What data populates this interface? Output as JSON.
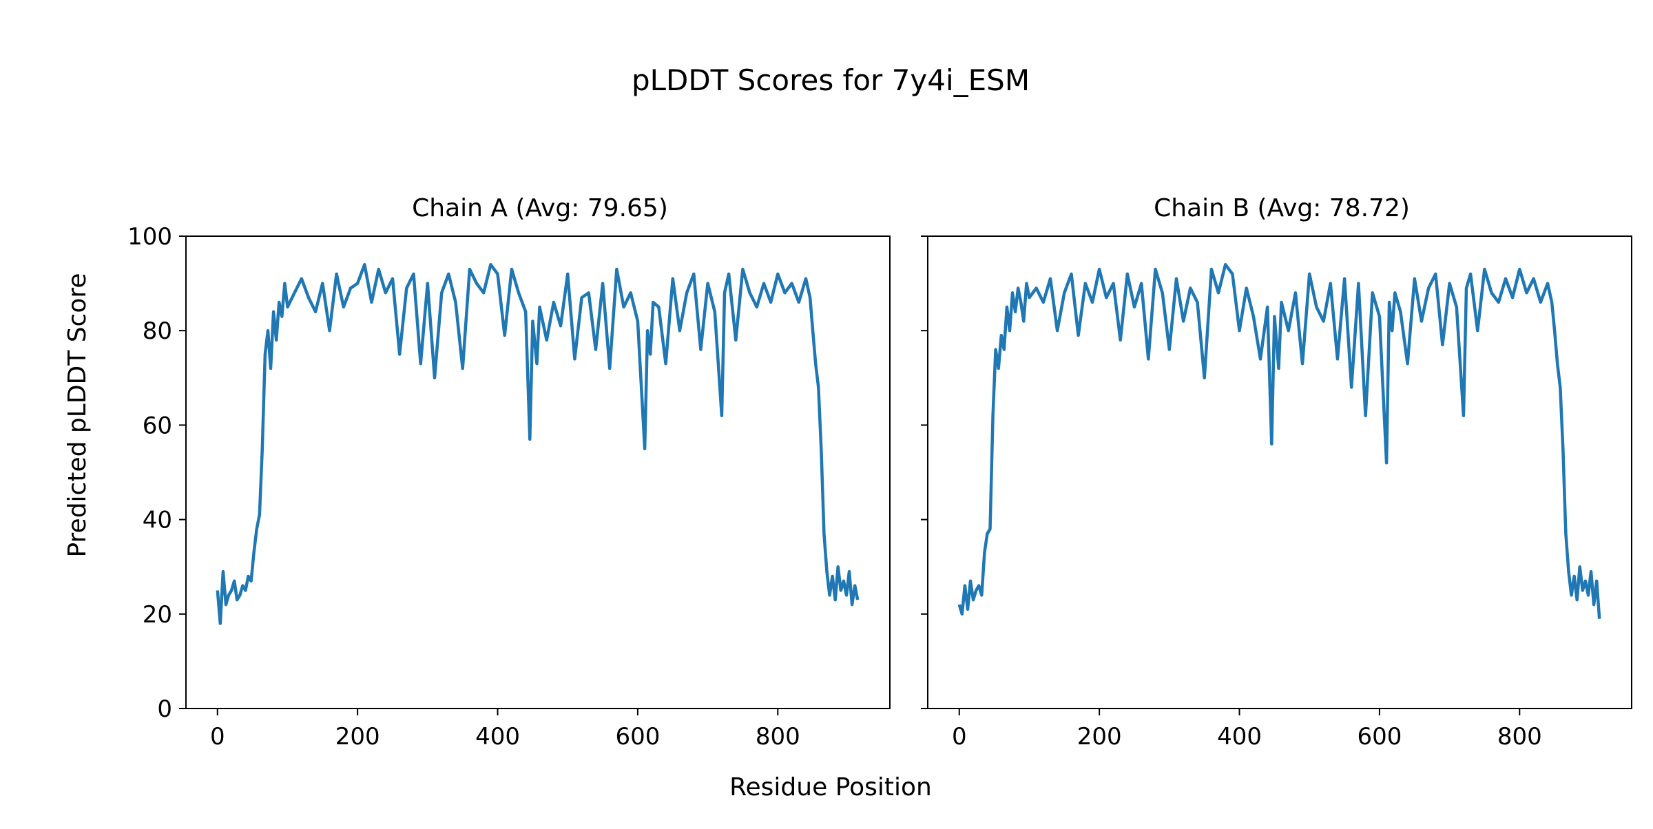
{
  "figure": {
    "title": "pLDDT Scores for 7y4i_ESM",
    "xlabel": "Residue Position",
    "ylabel": "Predicted pLDDT Score",
    "line_color": "#1f77b4"
  },
  "chart_data": [
    {
      "type": "line",
      "title": "Chain A (Avg: 79.65)",
      "xlabel": "Residue Position",
      "ylabel": "Predicted pLDDT Score",
      "xlim": [
        -45,
        960
      ],
      "ylim": [
        0,
        100
      ],
      "xticks": [
        0,
        200,
        400,
        600,
        800
      ],
      "yticks": [
        0,
        20,
        40,
        60,
        80,
        100
      ],
      "grid": false,
      "series": [
        {
          "x": [
            0,
            4,
            8,
            12,
            16,
            20,
            24,
            28,
            32,
            36,
            40,
            44,
            48,
            52,
            56,
            60,
            64,
            68,
            72,
            76,
            80,
            84,
            88,
            92,
            96,
            100,
            110,
            120,
            130,
            140,
            150,
            160,
            170,
            180,
            190,
            200,
            210,
            220,
            230,
            240,
            250,
            260,
            270,
            280,
            290,
            300,
            310,
            320,
            330,
            340,
            350,
            360,
            370,
            380,
            390,
            400,
            410,
            420,
            430,
            440,
            446,
            450,
            456,
            460,
            470,
            480,
            490,
            500,
            510,
            520,
            530,
            540,
            550,
            560,
            570,
            580,
            590,
            600,
            610,
            614,
            618,
            622,
            630,
            640,
            650,
            660,
            670,
            680,
            690,
            700,
            710,
            720,
            724,
            730,
            740,
            750,
            760,
            770,
            780,
            790,
            800,
            810,
            820,
            830,
            840,
            846,
            850,
            854,
            858,
            862,
            866,
            870,
            874,
            878,
            882,
            886,
            890,
            894,
            898,
            902,
            906,
            910,
            914
          ],
          "y": [
            25,
            18,
            29,
            22,
            24,
            25,
            27,
            23,
            24,
            26,
            25,
            28,
            27,
            33,
            38,
            41,
            55,
            75,
            80,
            72,
            84,
            78,
            86,
            83,
            90,
            85,
            88,
            91,
            87,
            84,
            90,
            80,
            92,
            85,
            89,
            90,
            94,
            86,
            93,
            88,
            91,
            75,
            89,
            92,
            73,
            90,
            70,
            88,
            92,
            86,
            72,
            93,
            90,
            88,
            94,
            92,
            79,
            93,
            88,
            84,
            57,
            82,
            73,
            85,
            78,
            86,
            81,
            92,
            74,
            87,
            88,
            76,
            90,
            72,
            93,
            85,
            88,
            82,
            55,
            80,
            75,
            86,
            85,
            73,
            91,
            80,
            88,
            92,
            76,
            90,
            84,
            62,
            88,
            92,
            78,
            93,
            88,
            85,
            90,
            86,
            92,
            88,
            90,
            86,
            91,
            87,
            80,
            73,
            68,
            55,
            37,
            29,
            24,
            28,
            23,
            30,
            25,
            27,
            24,
            29,
            22,
            26,
            23
          ]
        }
      ]
    },
    {
      "type": "line",
      "title": "Chain B (Avg: 78.72)",
      "xlabel": "Residue Position",
      "ylabel": "Predicted pLDDT Score",
      "xlim": [
        -45,
        960
      ],
      "ylim": [
        0,
        100
      ],
      "xticks": [
        0,
        200,
        400,
        600,
        800
      ],
      "yticks": [
        0,
        20,
        40,
        60,
        80,
        100
      ],
      "grid": false,
      "series": [
        {
          "x": [
            0,
            4,
            8,
            12,
            16,
            20,
            24,
            28,
            32,
            36,
            40,
            44,
            48,
            52,
            56,
            60,
            64,
            68,
            72,
            76,
            80,
            84,
            88,
            92,
            96,
            100,
            110,
            120,
            130,
            140,
            150,
            160,
            170,
            180,
            190,
            200,
            210,
            220,
            230,
            240,
            250,
            260,
            270,
            280,
            290,
            300,
            310,
            320,
            330,
            340,
            350,
            360,
            370,
            380,
            390,
            400,
            410,
            420,
            430,
            440,
            446,
            450,
            456,
            460,
            470,
            480,
            490,
            500,
            510,
            520,
            530,
            540,
            550,
            560,
            570,
            580,
            590,
            600,
            610,
            614,
            618,
            622,
            630,
            640,
            650,
            660,
            670,
            680,
            690,
            700,
            710,
            720,
            724,
            730,
            740,
            750,
            760,
            770,
            780,
            790,
            800,
            810,
            820,
            830,
            840,
            846,
            850,
            854,
            858,
            862,
            866,
            870,
            874,
            878,
            882,
            886,
            890,
            894,
            898,
            902,
            906,
            910,
            914
          ],
          "y": [
            22,
            20,
            26,
            21,
            27,
            23,
            25,
            26,
            24,
            33,
            37,
            38,
            62,
            76,
            72,
            79,
            76,
            85,
            80,
            88,
            84,
            89,
            86,
            82,
            90,
            87,
            89,
            86,
            91,
            80,
            88,
            92,
            79,
            90,
            86,
            93,
            87,
            90,
            78,
            92,
            85,
            90,
            74,
            93,
            88,
            76,
            91,
            82,
            89,
            86,
            70,
            93,
            88,
            94,
            92,
            80,
            89,
            83,
            74,
            85,
            56,
            83,
            72,
            86,
            80,
            88,
            73,
            92,
            85,
            82,
            90,
            74,
            91,
            68,
            90,
            62,
            88,
            83,
            52,
            86,
            80,
            88,
            84,
            73,
            91,
            82,
            89,
            92,
            77,
            90,
            85,
            62,
            89,
            92,
            80,
            93,
            88,
            86,
            91,
            87,
            93,
            88,
            91,
            86,
            90,
            86,
            80,
            73,
            68,
            55,
            37,
            29,
            24,
            28,
            23,
            30,
            25,
            27,
            24,
            29,
            22,
            27,
            19
          ]
        }
      ]
    }
  ]
}
